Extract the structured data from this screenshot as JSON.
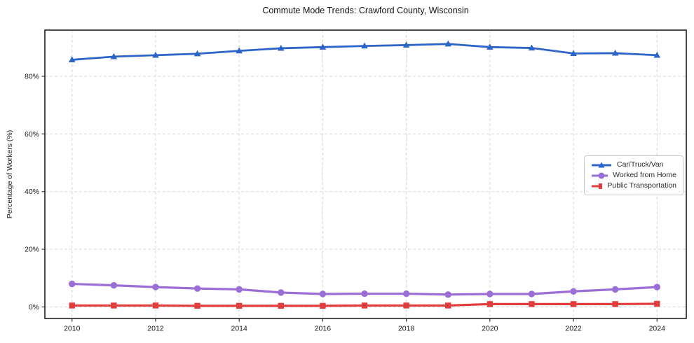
{
  "chart_data": {
    "type": "line",
    "title": "Commute Mode Trends: Crawford County, Wisconsin",
    "xlabel": "",
    "ylabel": "Percentage of Workers (%)",
    "x": [
      2010,
      2011,
      2012,
      2013,
      2014,
      2015,
      2016,
      2017,
      2018,
      2019,
      2020,
      2021,
      2022,
      2023,
      2024
    ],
    "series": [
      {
        "name": "Car/Truck/Van",
        "color": "#2d64c8",
        "marker": "triangle",
        "line_width": 2.8,
        "values": [
          85.7,
          86.8,
          87.3,
          87.8,
          88.8,
          89.7,
          90.1,
          90.5,
          90.8,
          91.2,
          90.1,
          89.8,
          87.9,
          88.0,
          87.3
        ]
      },
      {
        "name": "Worked from Home",
        "color": "#9a6dd7",
        "marker": "circle",
        "line_width": 3.2,
        "values": [
          8.0,
          7.5,
          6.9,
          6.4,
          6.1,
          5.0,
          4.5,
          4.6,
          4.6,
          4.3,
          4.5,
          4.5,
          5.4,
          6.1,
          6.9
        ]
      },
      {
        "name": "Public Transportation",
        "color": "#e23d3d",
        "marker": "square",
        "line_width": 3.2,
        "values": [
          0.5,
          0.5,
          0.5,
          0.4,
          0.4,
          0.4,
          0.4,
          0.5,
          0.5,
          0.5,
          1.0,
          1.0,
          1.0,
          1.0,
          1.1
        ]
      }
    ],
    "xticks": [
      2010,
      2012,
      2014,
      2016,
      2018,
      2020,
      2022,
      2024
    ],
    "yticks": [
      0,
      20,
      40,
      60,
      80
    ],
    "ytick_suffix": "%",
    "xlim": [
      2009.35,
      2024.7
    ],
    "ylim": [
      -4,
      96
    ],
    "grid": true,
    "legend_position": "center-right"
  },
  "style": {
    "background": "#ffffff",
    "grid_color": "#d8d8d8",
    "axis_color": "#000000",
    "tick_color": "#333333",
    "text_color": "#1a1a1a",
    "legend_border": "#c9c9c9"
  }
}
